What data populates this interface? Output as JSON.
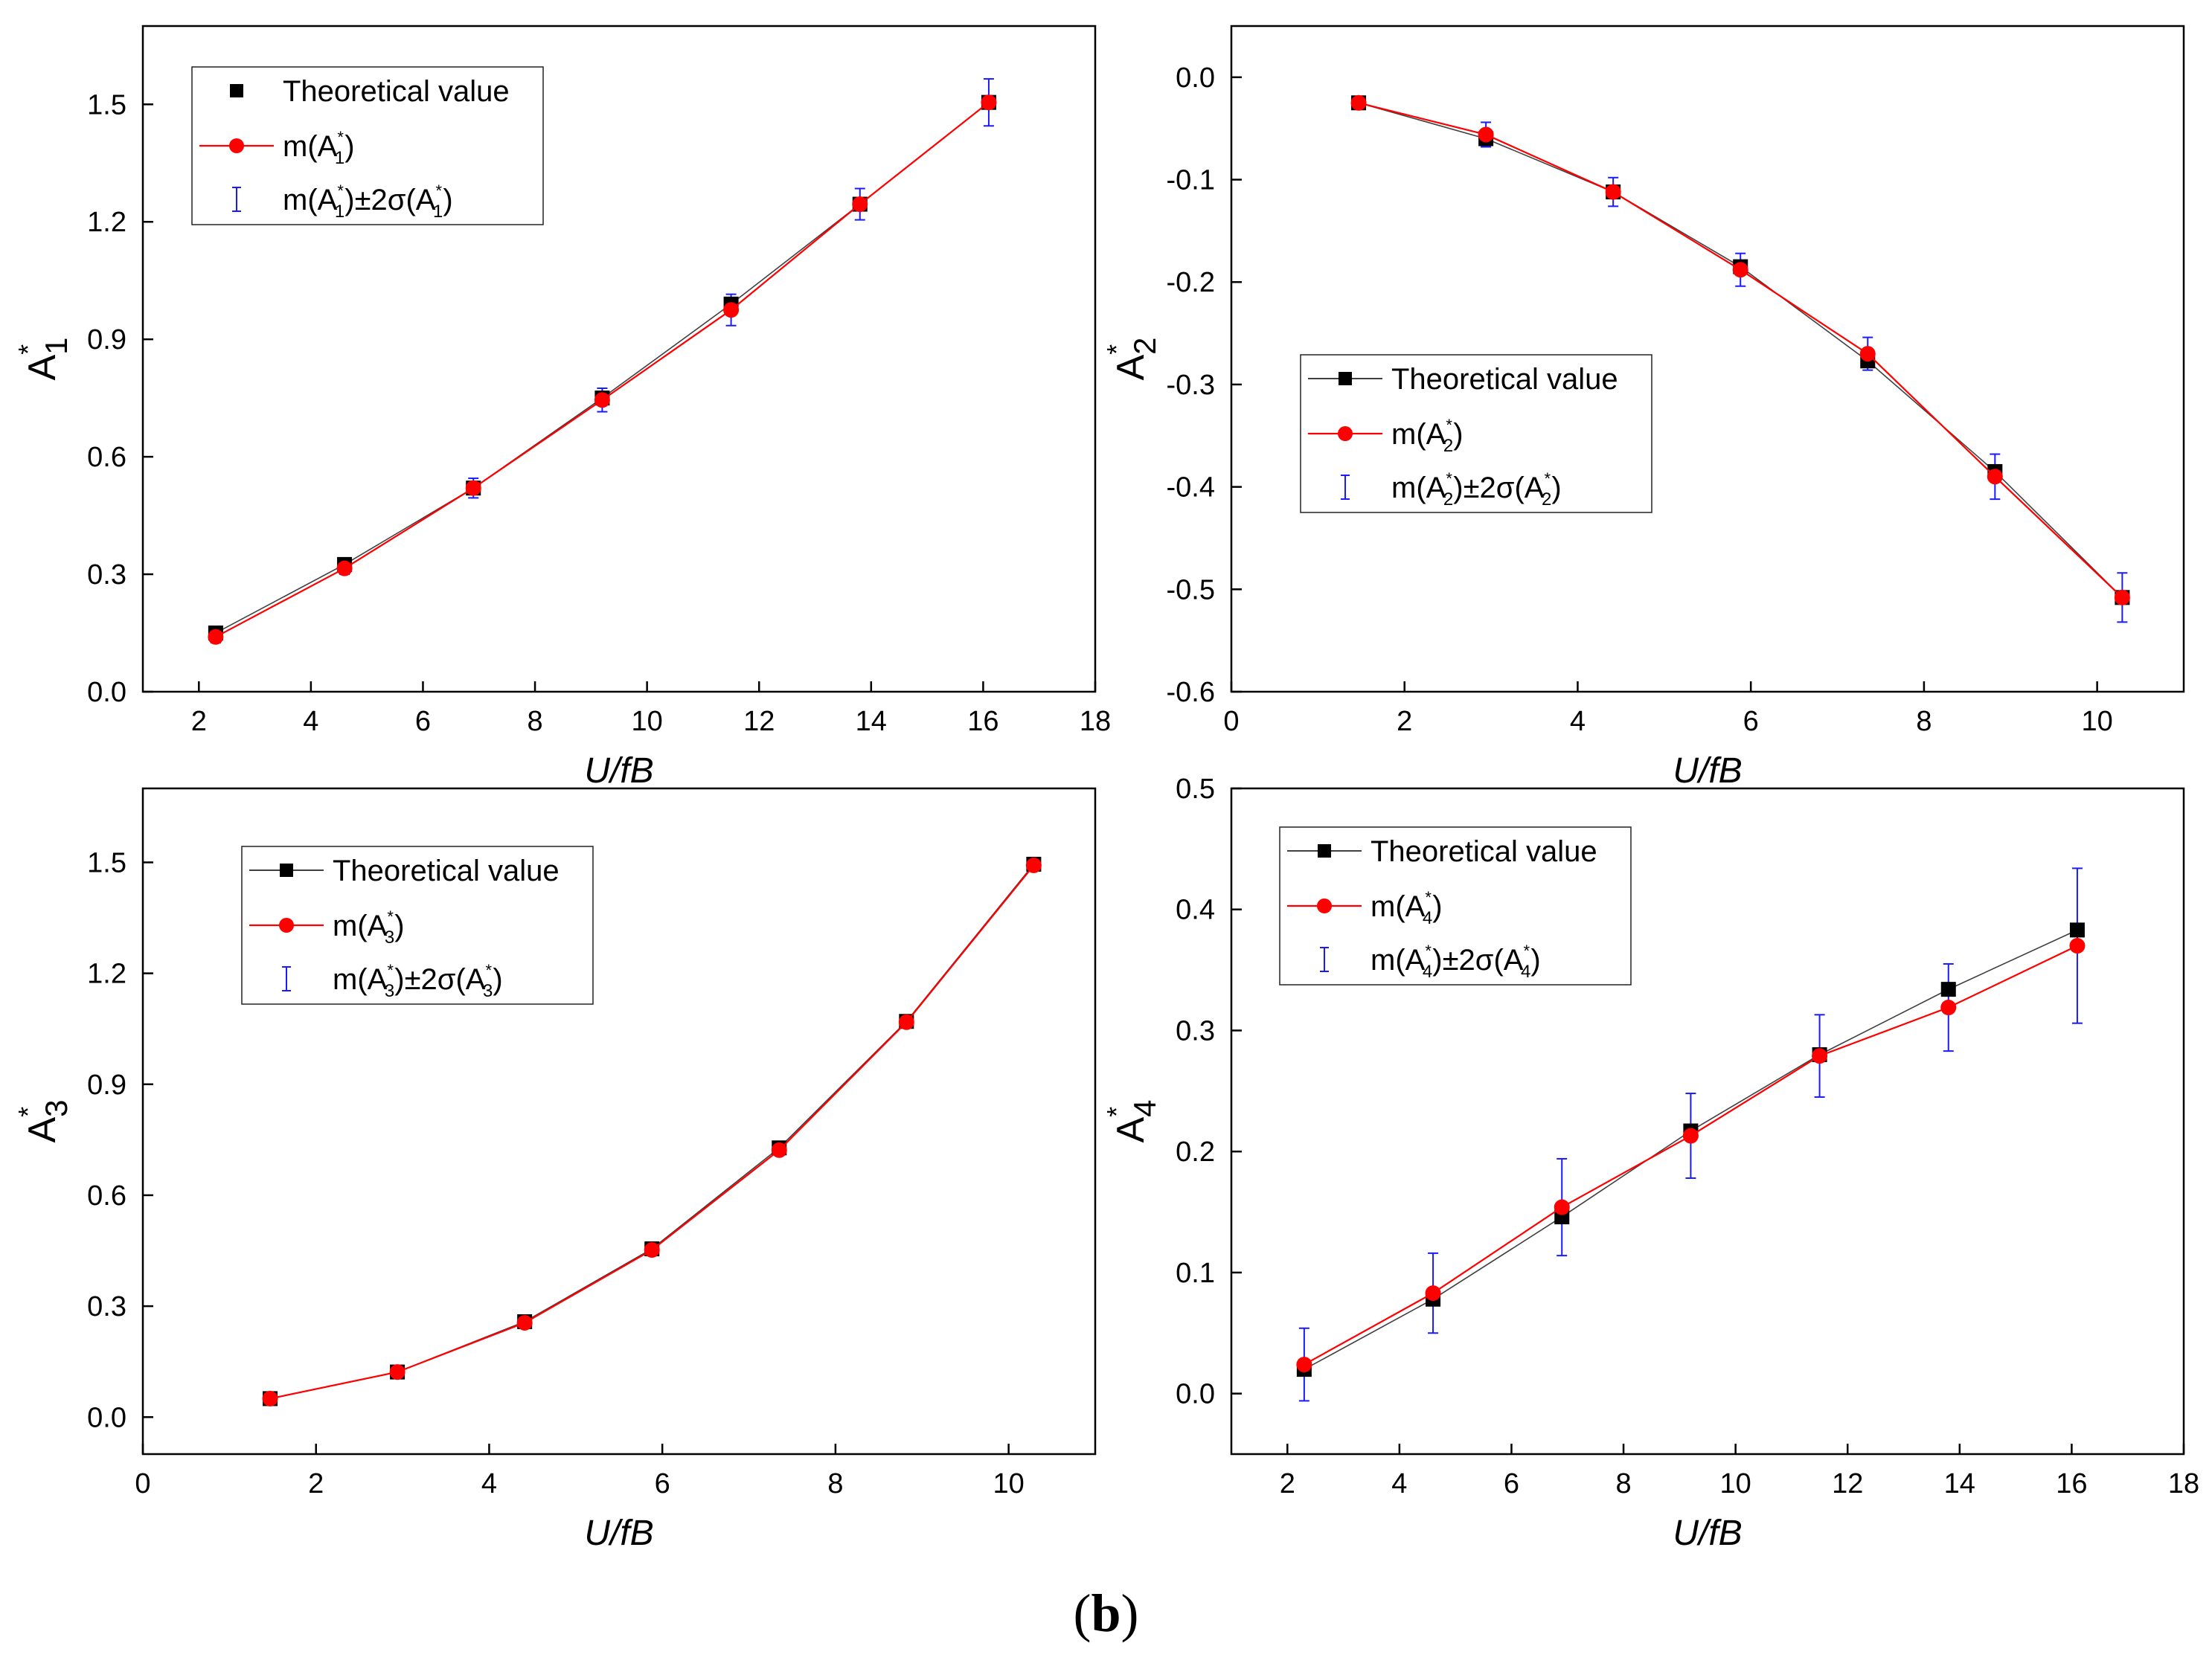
{
  "figure": {
    "caption_open": "(",
    "caption_letter": "b",
    "caption_close": ")"
  },
  "colors": {
    "theoretical": "#000000",
    "mean": "#ff0000",
    "error_bar": "#1a1aff",
    "axis": "#000000"
  },
  "chart_data": [
    {
      "type": "line",
      "id": "A1",
      "ylabel_base": "A",
      "ylabel_sub": "1",
      "ylabel_sup": "*",
      "xlabel": "U/fB",
      "xlim": [
        1,
        18
      ],
      "ylim": [
        0,
        1.7
      ],
      "xticks": [
        2,
        4,
        6,
        8,
        10,
        12,
        14,
        16,
        18
      ],
      "yticks": [
        0.0,
        0.3,
        0.6,
        0.9,
        1.2,
        1.5
      ],
      "ytick_labels": [
        "0.0",
        "0.3",
        "0.6",
        "0.9",
        "1.2",
        "1.5"
      ],
      "legend": {
        "position": "top-left",
        "entries": [
          {
            "text": "Theoretical value",
            "marker": "square"
          },
          {
            "text": "m(A",
            "sub": "1",
            "sup": "*",
            "after": ")",
            "marker": "circle"
          },
          {
            "text": "m(A",
            "sub": "1",
            "sup": "*",
            "after": ")±2σ(A",
            "sub2": "1",
            "sup2": "*",
            "after2": ")",
            "marker": "errorbar"
          }
        ]
      },
      "x": [
        2.3,
        4.6,
        6.9,
        9.2,
        11.5,
        13.8,
        16.1
      ],
      "series": [
        {
          "values": [
            0.15,
            0.325,
            0.52,
            0.75,
            0.99,
            1.245,
            1.505
          ]
        },
        {
          "values": [
            0.14,
            0.315,
            0.52,
            0.745,
            0.975,
            1.245,
            1.505
          ]
        }
      ],
      "error": [
        0.015,
        0.015,
        0.025,
        0.03,
        0.04,
        0.04,
        0.06
      ]
    },
    {
      "type": "line",
      "id": "A2",
      "ylabel_base": "A",
      "ylabel_sub": "2",
      "ylabel_sup": "*",
      "xlabel": "U/fB",
      "xlim": [
        0,
        11
      ],
      "ylim": [
        -0.6,
        0.05
      ],
      "xticks": [
        0,
        2,
        4,
        6,
        8,
        10
      ],
      "yticks": [
        0.0,
        -0.1,
        -0.2,
        -0.3,
        -0.4,
        -0.5,
        -0.6
      ],
      "ytick_labels": [
        "0.0",
        "-0.1",
        "-0.2",
        "-0.3",
        "-0.4",
        "-0.5",
        "-0.6"
      ],
      "legend": {
        "position": "center-left",
        "entries": [
          {
            "text": "Theoretical value",
            "marker": "square"
          },
          {
            "text": "m(A",
            "sub": "2",
            "sup": "*",
            "after": ")",
            "marker": "circle"
          },
          {
            "text": "m(A",
            "sub": "2",
            "sup": "*",
            "after": ")±2σ(A",
            "sub2": "2",
            "sup2": "*",
            "after2": ")",
            "marker": "errorbar"
          }
        ]
      },
      "x": [
        1.47,
        2.94,
        4.41,
        5.88,
        7.35,
        8.82,
        10.29
      ],
      "series": [
        {
          "values": [
            -0.025,
            -0.06,
            -0.112,
            -0.185,
            -0.277,
            -0.385,
            -0.508
          ]
        },
        {
          "values": [
            -0.025,
            -0.056,
            -0.112,
            -0.188,
            -0.27,
            -0.39,
            -0.508
          ]
        }
      ],
      "error": [
        0.005,
        0.012,
        0.014,
        0.016,
        0.016,
        0.022,
        0.024
      ]
    },
    {
      "type": "line",
      "id": "A3",
      "ylabel_base": "A",
      "ylabel_sub": "3",
      "ylabel_sup": "*",
      "xlabel": "U/fB",
      "xlim": [
        0,
        11
      ],
      "ylim": [
        -0.1,
        1.7
      ],
      "xticks": [
        0,
        2,
        4,
        6,
        8,
        10
      ],
      "yticks": [
        0.0,
        0.3,
        0.6,
        0.9,
        1.2,
        1.5
      ],
      "ytick_labels": [
        "0.0",
        "0.3",
        "0.6",
        "0.9",
        "1.2",
        "1.5"
      ],
      "legend": {
        "position": "top-left",
        "entries": [
          {
            "text": "Theoretical value",
            "marker": "square"
          },
          {
            "text": "m(A",
            "sub": "3",
            "sup": "*",
            "after": ")",
            "marker": "circle"
          },
          {
            "text": "m(A",
            "sub": "3",
            "sup": "*",
            "after": ")±2σ(A",
            "sub2": "3",
            "sup2": "*",
            "after2": ")",
            "marker": "errorbar"
          }
        ]
      },
      "x": [
        1.47,
        2.94,
        4.41,
        5.88,
        7.35,
        8.82,
        10.29
      ],
      "series": [
        {
          "values": [
            0.05,
            0.122,
            0.258,
            0.455,
            0.728,
            1.07,
            1.495
          ]
        },
        {
          "values": [
            0.05,
            0.122,
            0.255,
            0.452,
            0.722,
            1.068,
            1.492
          ]
        }
      ],
      "error": [
        0.005,
        0.006,
        0.008,
        0.01,
        0.012,
        0.012,
        0.012
      ]
    },
    {
      "type": "line",
      "id": "A4",
      "ylabel_base": "A",
      "ylabel_sub": "4",
      "ylabel_sup": "*",
      "xlabel": "U/fB",
      "xlim": [
        1,
        18
      ],
      "ylim": [
        -0.05,
        0.5
      ],
      "xticks": [
        2,
        4,
        6,
        8,
        10,
        12,
        14,
        16,
        18
      ],
      "yticks": [
        0.0,
        0.1,
        0.2,
        0.3,
        0.4,
        0.5
      ],
      "ytick_labels": [
        "0.0",
        "0.1",
        "0.2",
        "0.3",
        "0.4",
        "0.5"
      ],
      "legend": {
        "position": "top-left",
        "entries": [
          {
            "text": "Theoretical value",
            "marker": "square"
          },
          {
            "text": "m(A",
            "sub": "4",
            "sup": "*",
            "after": ")",
            "marker": "circle"
          },
          {
            "text": "m(A",
            "sub": "4",
            "sup": "*",
            "after": ")±2σ(A",
            "sub2": "4",
            "sup2": "*",
            "after2": ")",
            "marker": "errorbar"
          }
        ]
      },
      "x": [
        2.3,
        4.6,
        6.9,
        9.2,
        11.5,
        13.8,
        16.1
      ],
      "series": [
        {
          "values": [
            0.02,
            0.078,
            0.146,
            0.217,
            0.28,
            0.334,
            0.383
          ]
        },
        {
          "values": [
            0.024,
            0.083,
            0.154,
            0.213,
            0.279,
            0.319,
            0.37
          ]
        }
      ],
      "error": [
        0.03,
        0.033,
        0.04,
        0.035,
        0.034,
        0.036,
        0.064
      ]
    }
  ]
}
